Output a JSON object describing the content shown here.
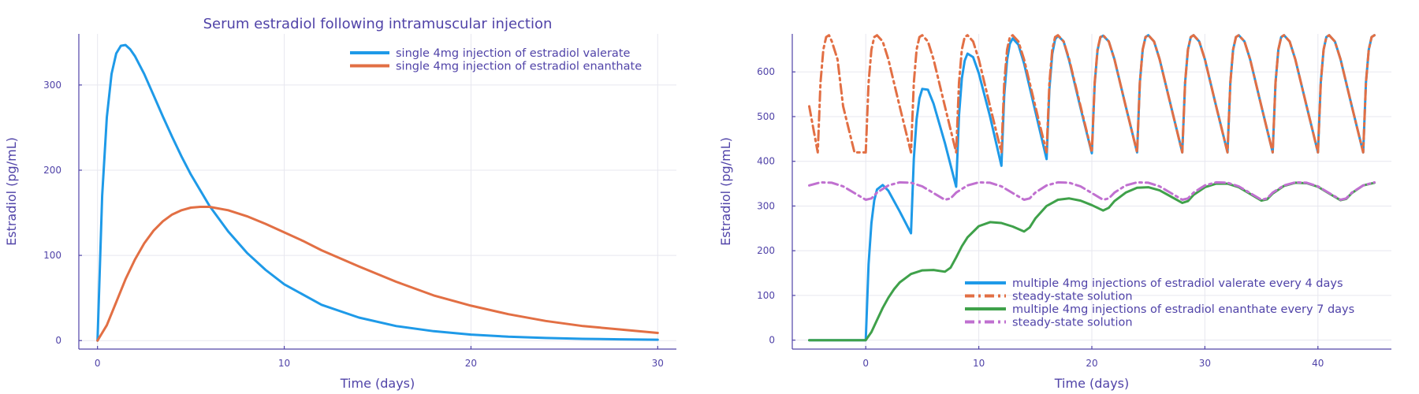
{
  "chart_data": [
    {
      "type": "line",
      "title": "Serum estradiol following intramuscular injection",
      "xlabel": "Time (days)",
      "ylabel": "Estradiol (pg/mL)",
      "xlim": [
        -1,
        31
      ],
      "ylim": [
        -10,
        360
      ],
      "xticks": [
        0,
        10,
        20,
        30
      ],
      "yticks": [
        0,
        100,
        200,
        300
      ],
      "grid": true,
      "legend": "top-right",
      "series": [
        {
          "name": "single 4mg injection of estradiol valerate",
          "color": "#1e9ae8",
          "style": "solid",
          "x": [
            0,
            0.25,
            0.5,
            0.75,
            1,
            1.25,
            1.5,
            1.75,
            2,
            2.5,
            3,
            3.5,
            4,
            4.5,
            5,
            6,
            7,
            8,
            9,
            10,
            12,
            14,
            16,
            18,
            20,
            22,
            24,
            26,
            28,
            30
          ],
          "y": [
            0,
            170,
            262,
            313,
            337,
            346,
            347,
            342,
            334,
            313,
            288,
            263,
            239,
            216,
            195,
            158,
            128,
            103,
            83,
            66,
            42,
            27,
            17,
            11,
            7,
            4.5,
            3,
            2,
            1.5,
            1
          ]
        },
        {
          "name": "single 4mg injection of estradiol enanthate",
          "color": "#e26f44",
          "style": "solid",
          "x": [
            0,
            0.5,
            1,
            1.5,
            2,
            2.5,
            3,
            3.5,
            4,
            4.5,
            5,
            5.5,
            6,
            7,
            8,
            9,
            10,
            11,
            12,
            14,
            16,
            18,
            20,
            22,
            24,
            26,
            28,
            30
          ],
          "y": [
            0,
            18,
            45,
            72,
            95,
            114,
            129,
            140,
            148,
            153,
            156,
            157,
            157,
            153,
            146,
            137,
            127,
            117,
            106,
            87,
            69,
            53,
            41,
            31,
            23,
            17,
            13,
            9
          ]
        }
      ]
    },
    {
      "type": "line",
      "title": "",
      "xlabel": "Time (days)",
      "ylabel": "Estradiol (pg/mL)",
      "xlim": [
        -6.5,
        46.5
      ],
      "ylim": [
        -20,
        685
      ],
      "xticks": [
        0,
        10,
        20,
        30,
        40
      ],
      "yticks": [
        0,
        100,
        200,
        300,
        400,
        500,
        600
      ],
      "grid": true,
      "legend": "bottom-right",
      "series": [
        {
          "name": "multiple 4mg injections of estradiol valerate every 4 days",
          "color": "#1e9ae8",
          "style": "solid",
          "x": [
            -5,
            -4,
            -2,
            0,
            0.25,
            0.5,
            0.75,
            1,
            1.5,
            2,
            3,
            4,
            4.25,
            4.5,
            4.75,
            5,
            5.5,
            6,
            7,
            8,
            8.25,
            8.5,
            8.75,
            9,
            9.5,
            10,
            11,
            12,
            12.25,
            12.5,
            12.75,
            13,
            13.5,
            14,
            15,
            16,
            16.25,
            16.5,
            16.75,
            17,
            17.5,
            18,
            19,
            20,
            20.25,
            20.5,
            20.75,
            21,
            21.5,
            22,
            23,
            24,
            24.25,
            24.5,
            24.75,
            25,
            25.5,
            26,
            27,
            28,
            28.25,
            28.5,
            28.75,
            29,
            29.5,
            30,
            31,
            32,
            32.25,
            32.5,
            32.75,
            33,
            33.5,
            34,
            35,
            36,
            36.25,
            36.5,
            36.75,
            37,
            37.5,
            38,
            39,
            40,
            40.25,
            40.5,
            40.75,
            41,
            41.5,
            42,
            43,
            44,
            44.25,
            44.5,
            44.75,
            45
          ],
          "y": [
            0,
            0,
            0,
            0,
            170,
            262,
            313,
            337,
            347,
            334,
            288,
            239,
            406,
            494,
            541,
            562,
            560,
            529,
            441,
            343,
            503,
            585,
            625,
            641,
            633,
            597,
            500,
            390,
            549,
            627,
            663,
            675,
            661,
            619,
            512,
            405,
            563,
            640,
            673,
            681,
            668,
            625,
            519,
            418,
            573,
            648,
            677,
            681,
            668,
            628,
            523,
            420,
            576,
            650,
            678,
            682,
            668,
            628,
            523,
            420,
            576,
            650,
            678,
            682,
            668,
            628,
            523,
            420,
            576,
            650,
            678,
            682,
            668,
            628,
            523,
            420,
            576,
            650,
            678,
            682,
            668,
            628,
            523,
            420,
            576,
            650,
            678,
            682,
            668,
            628,
            523,
            420,
            576,
            650,
            678,
            682
          ]
        },
        {
          "name": "steady-state solution",
          "color": "#e26f44",
          "style": "dashdot",
          "x": [
            -5,
            -4.25,
            -4,
            -3.75,
            -3.5,
            -3.25,
            -3,
            -2.5,
            -2,
            -1,
            0,
            0.25,
            0.5,
            0.75,
            1,
            1.5,
            2,
            3,
            4,
            4.25,
            4.5,
            4.75,
            5,
            5.5,
            6,
            7,
            8,
            8.25,
            8.5,
            8.75,
            9,
            9.5,
            10,
            11,
            12,
            12.25,
            12.5,
            12.75,
            13,
            13.5,
            14,
            15,
            16,
            16.25,
            16.5,
            16.75,
            17,
            17.5,
            18,
            19,
            20,
            20.25,
            20.5,
            20.75,
            21,
            21.5,
            22,
            23,
            24,
            24.25,
            24.5,
            24.75,
            25,
            25.5,
            26,
            27,
            28,
            28.25,
            28.5,
            28.75,
            29,
            29.5,
            30,
            31,
            32,
            32.25,
            32.5,
            32.75,
            33,
            33.5,
            34,
            35,
            36,
            36.25,
            36.5,
            36.75,
            37,
            37.5,
            38,
            39,
            40,
            40.25,
            40.5,
            40.75,
            41,
            41.5,
            42,
            43,
            44,
            44.25,
            44.5,
            44.75,
            45
          ],
          "y": [
            523,
            420,
            576,
            650,
            678,
            682,
            668,
            628,
            523,
            420,
            420,
            576,
            650,
            678,
            682,
            668,
            628,
            523,
            420,
            576,
            650,
            678,
            682,
            668,
            628,
            523,
            420,
            576,
            650,
            678,
            682,
            668,
            628,
            523,
            420,
            576,
            650,
            678,
            682,
            668,
            628,
            523,
            420,
            576,
            650,
            678,
            682,
            668,
            628,
            523,
            420,
            576,
            650,
            678,
            682,
            668,
            628,
            523,
            420,
            576,
            650,
            678,
            682,
            668,
            628,
            523,
            420,
            576,
            650,
            678,
            682,
            668,
            628,
            523,
            420,
            576,
            650,
            678,
            682,
            668,
            628,
            523,
            420,
            576,
            650,
            678,
            682,
            668,
            628,
            523,
            420,
            576,
            650,
            678,
            682,
            668,
            628,
            523,
            420,
            576,
            650,
            678,
            682
          ]
        },
        {
          "name": "multiple 4mg injections of estradiol enanthate every 7 days",
          "color": "#3fa14a",
          "style": "solid",
          "x": [
            -5,
            -3,
            -1,
            0,
            0.5,
            1,
            1.5,
            2,
            2.5,
            3,
            4,
            5,
            6,
            7,
            7.5,
            8,
            8.5,
            9,
            10,
            11,
            12,
            13,
            14,
            14.5,
            15,
            16,
            17,
            18,
            19,
            20,
            21,
            21.5,
            22,
            23,
            24,
            25,
            26,
            27,
            28,
            28.5,
            29,
            30,
            31,
            32,
            33,
            34,
            35,
            35.5,
            36,
            37,
            38,
            39,
            40,
            41,
            42,
            42.5,
            43,
            44,
            45
          ],
          "y": [
            0,
            0,
            0,
            0,
            18,
            45,
            72,
            95,
            114,
            129,
            148,
            156,
            157,
            153,
            162,
            185,
            210,
            230,
            255,
            264,
            262,
            254,
            243,
            252,
            272,
            300,
            314,
            317,
            312,
            302,
            290,
            296,
            311,
            330,
            341,
            342,
            335,
            321,
            307,
            311,
            325,
            342,
            350,
            350,
            342,
            327,
            312,
            315,
            328,
            345,
            352,
            351,
            343,
            328,
            313,
            316,
            329,
            346,
            352
          ]
        },
        {
          "name": "steady-state solution",
          "color": "#c070d0",
          "style": "dashdot",
          "x": [
            -5,
            -4,
            -3,
            -2,
            -1,
            0,
            0.5,
            1,
            2,
            3,
            4,
            5,
            6,
            7,
            7.5,
            8,
            9,
            10,
            11,
            12,
            13,
            14,
            14.5,
            15,
            16,
            17,
            18,
            19,
            20,
            21,
            21.5,
            22,
            23,
            24,
            25,
            26,
            27,
            28,
            28.5,
            29,
            30,
            31,
            32,
            33,
            34,
            35,
            35.5,
            36,
            37,
            38,
            39,
            40,
            41,
            42,
            42.5,
            43,
            44,
            45
          ],
          "y": [
            346,
            353,
            352,
            344,
            329,
            314,
            317,
            330,
            346,
            353,
            352,
            344,
            329,
            314,
            317,
            330,
            346,
            353,
            352,
            344,
            329,
            314,
            317,
            330,
            346,
            353,
            352,
            344,
            329,
            314,
            317,
            330,
            346,
            353,
            352,
            344,
            329,
            314,
            317,
            330,
            346,
            353,
            352,
            344,
            329,
            314,
            317,
            330,
            346,
            353,
            352,
            344,
            329,
            314,
            317,
            330,
            346,
            353
          ]
        }
      ]
    }
  ]
}
